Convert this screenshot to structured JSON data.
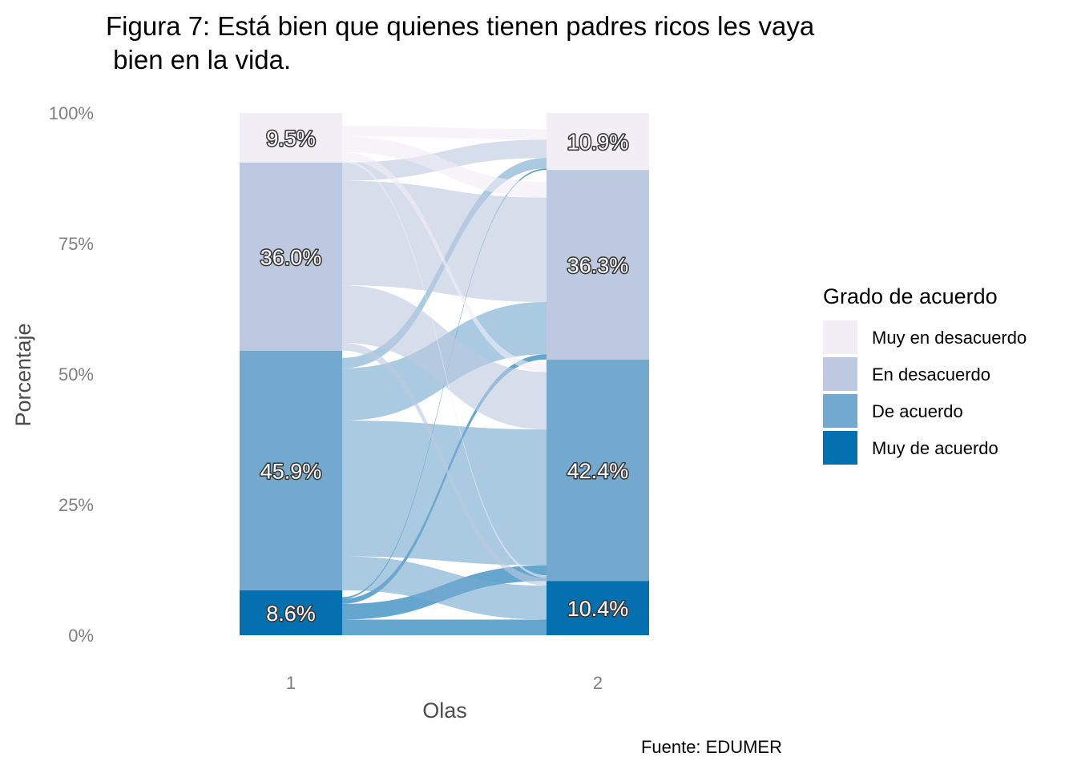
{
  "chart_data": {
    "type": "alluvial",
    "title": "Figura 7:  Está bien que quienes tienen padres ricos les vaya",
    "title_line2": " bien en la vida.",
    "xlabel": "Olas",
    "ylabel": "Porcentaje",
    "caption": "Fuente: EDUMER",
    "ylim": [
      0,
      100
    ],
    "y_ticks": [
      "0%",
      "25%",
      "50%",
      "75%",
      "100%"
    ],
    "x_ticks": [
      "1",
      "2"
    ],
    "legend": {
      "title": "Grado de acuerdo",
      "position": "right",
      "items": [
        "Muy en desacuerdo",
        "En desacuerdo",
        "De acuerdo",
        "Muy de acuerdo"
      ]
    },
    "categories": [
      "Muy de acuerdo",
      "De acuerdo",
      "En desacuerdo",
      "Muy en desacuerdo"
    ],
    "colors": {
      "Muy en desacuerdo": "#f1eef6",
      "En desacuerdo": "#bdc9e1",
      "De acuerdo": "#74a9cf",
      "Muy de acuerdo": "#0570b0"
    },
    "waves": [
      {
        "name": "1",
        "values": [
          8.6,
          45.9,
          36.0,
          9.5
        ],
        "labels": [
          "8.6%",
          "45.9%",
          "36.0%",
          "9.5%"
        ]
      },
      {
        "name": "2",
        "values": [
          10.4,
          42.4,
          36.3,
          10.9
        ],
        "labels": [
          "10.4%",
          "42.4%",
          "36.3%",
          "10.9%"
        ]
      }
    ],
    "flows": [
      {
        "from": "Muy de acuerdo",
        "to": "Muy de acuerdo",
        "value": 3.0
      },
      {
        "from": "Muy de acuerdo",
        "to": "De acuerdo",
        "value": 3.0
      },
      {
        "from": "Muy de acuerdo",
        "to": "En desacuerdo",
        "value": 1.0
      },
      {
        "from": "Muy de acuerdo",
        "to": "Muy en desacuerdo",
        "value": 0.3
      },
      {
        "from": "De acuerdo",
        "to": "Muy de acuerdo",
        "value": 6.5
      },
      {
        "from": "De acuerdo",
        "to": "De acuerdo",
        "value": 26.0
      },
      {
        "from": "De acuerdo",
        "to": "En desacuerdo",
        "value": 10.0
      },
      {
        "from": "De acuerdo",
        "to": "Muy en desacuerdo",
        "value": 2.0
      },
      {
        "from": "En desacuerdo",
        "to": "Muy de acuerdo",
        "value": 1.5
      },
      {
        "from": "En desacuerdo",
        "to": "De acuerdo",
        "value": 11.0
      },
      {
        "from": "En desacuerdo",
        "to": "En desacuerdo",
        "value": 20.0
      },
      {
        "from": "En desacuerdo",
        "to": "Muy en desacuerdo",
        "value": 3.5
      },
      {
        "from": "Muy en desacuerdo",
        "to": "Muy de acuerdo",
        "value": 0.5
      },
      {
        "from": "Muy en desacuerdo",
        "to": "De acuerdo",
        "value": 1.5
      },
      {
        "from": "Muy en desacuerdo",
        "to": "En desacuerdo",
        "value": 3.0
      },
      {
        "from": "Muy en desacuerdo",
        "to": "Muy en desacuerdo",
        "value": 2.0
      }
    ]
  }
}
